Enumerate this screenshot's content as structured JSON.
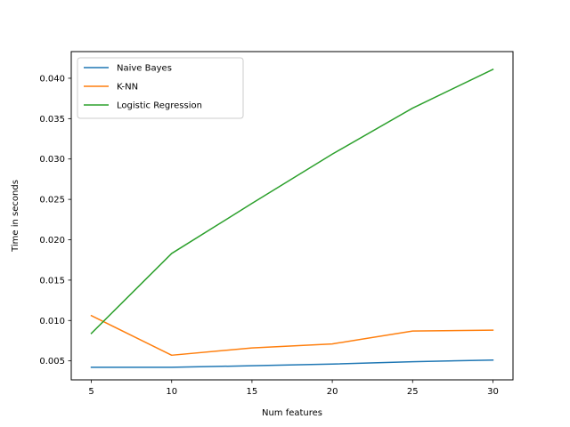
{
  "chart_data": {
    "type": "line",
    "title": "",
    "xlabel": "Num features",
    "ylabel": "Time in seconds",
    "x": [
      5,
      10,
      15,
      20,
      25,
      30
    ],
    "xlim": [
      3.75,
      31.25
    ],
    "ylim": [
      0.00265,
      0.0433
    ],
    "xticks": [
      5,
      10,
      15,
      20,
      25,
      30
    ],
    "xtick_labels": [
      "5",
      "10",
      "15",
      "20",
      "25",
      "30"
    ],
    "yticks": [
      0.005,
      0.01,
      0.015,
      0.02,
      0.025,
      0.03,
      0.035,
      0.04
    ],
    "ytick_labels": [
      "0.005",
      "0.010",
      "0.015",
      "0.020",
      "0.025",
      "0.030",
      "0.035",
      "0.040"
    ],
    "grid": false,
    "legend_position": "top-left",
    "series": [
      {
        "name": "Naive Bayes",
        "color": "#1f77b4",
        "values": [
          0.0042,
          0.0042,
          0.0044,
          0.0046,
          0.0049,
          0.0051
        ]
      },
      {
        "name": "K-NN",
        "color": "#ff7f0e",
        "values": [
          0.0106,
          0.0057,
          0.0066,
          0.0071,
          0.0087,
          0.0088
        ]
      },
      {
        "name": "Logistic Regression",
        "color": "#2ca02c",
        "values": [
          0.0084,
          0.0183,
          0.0245,
          0.0306,
          0.0363,
          0.0411
        ]
      }
    ]
  }
}
